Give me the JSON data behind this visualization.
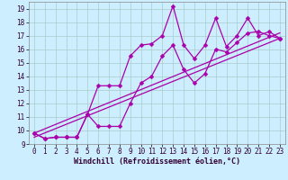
{
  "xlabel": "Windchill (Refroidissement éolien,°C)",
  "bg_color": "#cceeff",
  "grid_color": "#aacccc",
  "line_color": "#aa00aa",
  "xlim": [
    -0.5,
    23.5
  ],
  "ylim": [
    9.0,
    19.5
  ],
  "xticks": [
    0,
    1,
    2,
    3,
    4,
    5,
    6,
    7,
    8,
    9,
    10,
    11,
    12,
    13,
    14,
    15,
    16,
    17,
    18,
    19,
    20,
    21,
    22,
    23
  ],
  "yticks": [
    9,
    10,
    11,
    12,
    13,
    14,
    15,
    16,
    17,
    18,
    19
  ],
  "series1_x": [
    0,
    1,
    2,
    3,
    4,
    5,
    6,
    7,
    8,
    9,
    10,
    11,
    12,
    13,
    14,
    15,
    16,
    17,
    18,
    19,
    20,
    21,
    22,
    23
  ],
  "series1_y": [
    9.8,
    9.4,
    9.5,
    9.5,
    9.5,
    11.2,
    13.3,
    13.3,
    13.3,
    15.5,
    16.3,
    16.4,
    17.0,
    19.2,
    16.3,
    15.3,
    16.3,
    18.3,
    16.2,
    17.0,
    18.3,
    17.0,
    17.3,
    16.8
  ],
  "series2_x": [
    0,
    1,
    2,
    3,
    4,
    5,
    6,
    7,
    8,
    9,
    10,
    11,
    12,
    13,
    14,
    15,
    16,
    17,
    18,
    19,
    20,
    21,
    22,
    23
  ],
  "series2_y": [
    9.8,
    9.4,
    9.5,
    9.5,
    9.5,
    11.2,
    10.3,
    10.3,
    10.3,
    12.0,
    13.5,
    14.0,
    15.5,
    16.3,
    14.5,
    13.5,
    14.2,
    16.0,
    15.8,
    16.5,
    17.2,
    17.3,
    17.0,
    16.8
  ],
  "line3_x": [
    0,
    23
  ],
  "line3_y": [
    9.5,
    16.8
  ],
  "line4_x": [
    0,
    23
  ],
  "line4_y": [
    9.8,
    17.2
  ],
  "markersize": 2.5,
  "linewidth": 0.9,
  "tick_fontsize": 5.5,
  "xlabel_fontsize": 6.0
}
